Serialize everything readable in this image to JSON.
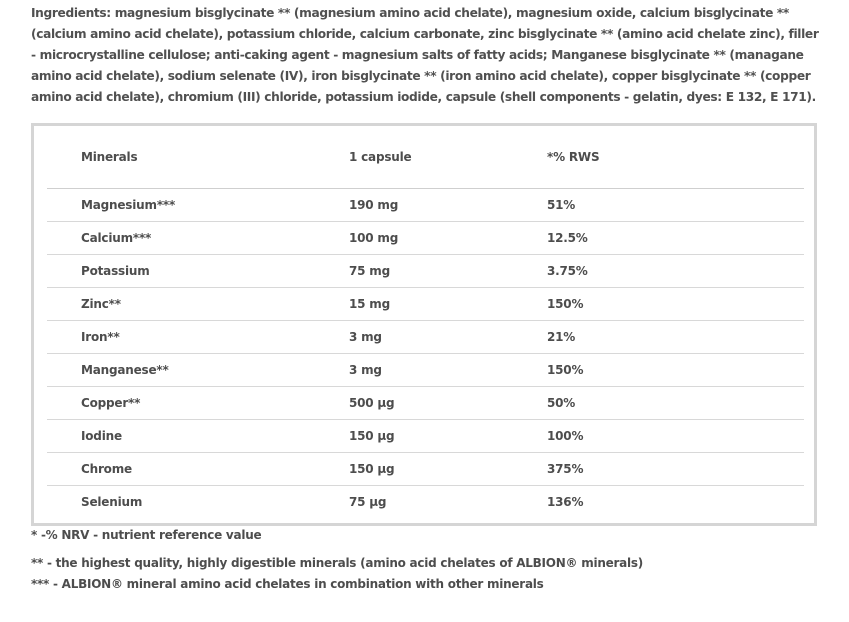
{
  "ingredients_text": "Ingredients: magnesium bisglycinate ** (magnesium amino acid chelate), magnesium oxide, calcium bisglycinate ** (calcium amino acid chelate), potassium chloride, calcium carbonate, zinc bisglycinate ** (amino acid chelate zinc), filler - microcrystalline cellulose; anti-caking agent - magnesium salts of fatty acids; Manganese bisglycinate ** (managane amino acid chelate), sodium selenate (IV), iron bisglycinate ** (iron amino acid chelate), copper bisglycinate ** (copper amino acid chelate), chromium (III) chloride, potassium iodide, capsule (shell components - gelatin, dyes: E 132, E 171).",
  "table": {
    "headers": [
      "Minerals",
      "1 capsule",
      "*% RWS"
    ],
    "rows": [
      [
        "Magnesium***",
        "190 mg",
        "51%"
      ],
      [
        "Calcium***",
        "100 mg",
        "12.5%"
      ],
      [
        "Potassium",
        "75 mg",
        "3.75%"
      ],
      [
        "Zinc**",
        "15 mg",
        "150%"
      ],
      [
        "Iron**",
        "3 mg",
        "21%"
      ],
      [
        "Manganese**",
        "3 mg",
        "150%"
      ],
      [
        "Copper**",
        "500 µg",
        "50%"
      ],
      [
        "Iodine",
        "150 µg",
        "100%"
      ],
      [
        "Chrome",
        "150 µg",
        "375%"
      ],
      [
        "Selenium",
        "75 µg",
        "136%"
      ]
    ]
  },
  "footnotes": [
    "* -% NRV - nutrient reference value",
    "** - the highest quality, highly digestible minerals (amino acid chelates of ALBION® minerals)",
    "*** - ALBION® mineral amino acid chelates in combination with other minerals"
  ]
}
